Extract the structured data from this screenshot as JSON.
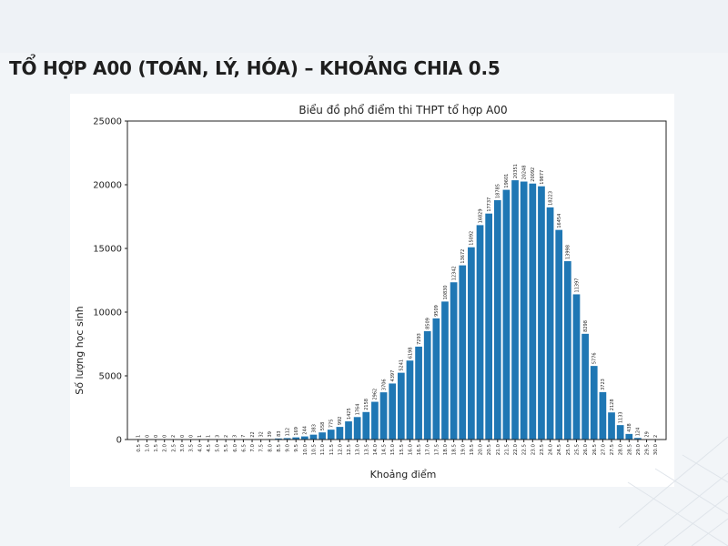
{
  "page": {
    "heading": "TỔ HỢP A00 (TOÁN, LÝ, HÓA) – KHOẢNG CHIA 0.5"
  },
  "colors": {
    "bar": "#1f77b4",
    "background": "#f2f5f8",
    "heading": "#1e1e1e"
  },
  "chart_data": {
    "type": "bar",
    "title": "Biểu đồ phổ điểm thi THPT tổ hợp A00",
    "xlabel": "Khoảng điểm",
    "ylabel": "Số lượng học sinh",
    "ylim": [
      0,
      25000
    ],
    "yticks": [
      0,
      5000,
      10000,
      15000,
      20000,
      25000
    ],
    "grid": false,
    "categories": [
      "0.5",
      "1.0",
      "1.5",
      "2.0",
      "2.5",
      "3.0",
      "3.5",
      "4.0",
      "4.5",
      "5.0",
      "5.5",
      "6.0",
      "6.5",
      "7.0",
      "7.5",
      "8.0",
      "8.5",
      "9.0",
      "9.5",
      "10.0",
      "10.5",
      "11.0",
      "11.5",
      "12.0",
      "12.5",
      "13.0",
      "13.5",
      "14.0",
      "14.5",
      "15.0",
      "15.5",
      "16.0",
      "16.5",
      "17.0",
      "17.5",
      "18.0",
      "18.5",
      "19.0",
      "19.5",
      "20.0",
      "20.5",
      "21.0",
      "21.5",
      "22.0",
      "22.5",
      "23.0",
      "23.5",
      "24.0",
      "24.5",
      "25.0",
      "25.5",
      "26.0",
      "26.5",
      "27.0",
      "27.5",
      "28.0",
      "28.5",
      "29.0",
      "29.5",
      "30.0"
    ],
    "values": [
      1,
      0,
      0,
      0,
      2,
      0,
      0,
      1,
      1,
      3,
      2,
      3,
      7,
      22,
      32,
      39,
      83,
      112,
      169,
      244,
      383,
      558,
      775,
      992,
      1425,
      1764,
      2158,
      2962,
      3706,
      4397,
      5241,
      6198,
      7293,
      8509,
      9509,
      10830,
      12342,
      13672,
      15092,
      16829,
      17737,
      18785,
      19601,
      20351,
      20248,
      20092,
      19877,
      18223,
      16454,
      13998,
      11397,
      8298,
      5776,
      3723,
      2128,
      1133,
      438,
      124,
      29,
      2
    ],
    "value_labels": [
      "1",
      "0",
      "0",
      "0",
      "2",
      "0",
      "0",
      "1",
      "1",
      "3",
      "2",
      "3",
      "7",
      "22",
      "32",
      "39",
      "83",
      "112",
      "169",
      "244",
      "383",
      "558",
      "775",
      "992",
      "1425",
      "1764",
      "2158",
      "2962",
      "3706",
      "4397",
      "5241",
      "6198",
      "7293",
      "8509",
      "9509",
      "10830",
      "12342",
      "13672",
      "15092",
      "16829",
      "17737",
      "18785",
      "19601",
      "20351",
      "20248",
      "20092",
      "19877",
      "18223",
      "16454",
      "13998",
      "11397",
      "8298",
      "5776",
      "3723",
      "2128",
      "1133",
      "438",
      "124",
      "29",
      "2"
    ]
  }
}
